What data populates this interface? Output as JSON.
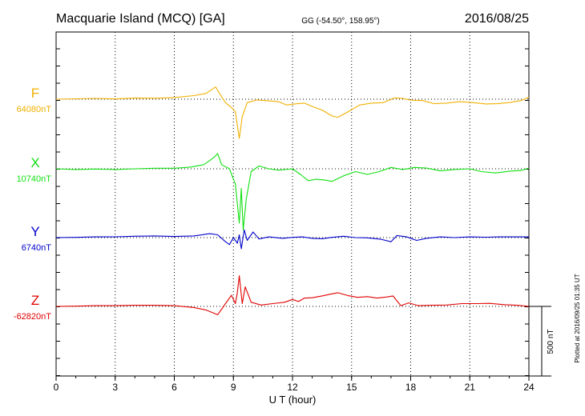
{
  "header": {
    "station": "Macquarie Island (MCQ)  [GA]",
    "coords": "GG (-54.50°, 158.95°)",
    "date": "2016/08/25"
  },
  "footer": {
    "plotted": "Plotted at 2016/09/25 01:35 UT",
    "scale_label": "500 nT"
  },
  "chart_data": {
    "type": "line",
    "xlabel": "U T (hour)",
    "xlim": [
      0,
      24
    ],
    "xticks": [
      "0",
      "3",
      "6",
      "9",
      "12",
      "15",
      "18",
      "21",
      "24"
    ],
    "grid": true,
    "scale_nT": 500,
    "colors": {
      "F": "#f0b000",
      "X": "#10e010",
      "Y": "#0000cc",
      "Z": "#e00000"
    },
    "series": [
      {
        "name": "F",
        "baseline_label": "64080nT",
        "baseline_nT": 64080,
        "points": [
          [
            0,
            64080
          ],
          [
            1,
            64083
          ],
          [
            2,
            64086
          ],
          [
            3,
            64082
          ],
          [
            4,
            64088
          ],
          [
            5,
            64087
          ],
          [
            6,
            64092
          ],
          [
            7,
            64106
          ],
          [
            7.6,
            64121
          ],
          [
            8.1,
            64168
          ],
          [
            8.3,
            64120
          ],
          [
            8.6,
            64055
          ],
          [
            8.9,
            64020
          ],
          [
            9.1,
            63990
          ],
          [
            9.3,
            63798
          ],
          [
            9.45,
            63955
          ],
          [
            9.7,
            64055
          ],
          [
            10.2,
            64075
          ],
          [
            10.8,
            64068
          ],
          [
            11.3,
            64062
          ],
          [
            11.7,
            64038
          ],
          [
            12.2,
            64047
          ],
          [
            12.6,
            64052
          ],
          [
            13.0,
            64028
          ],
          [
            13.5,
            64002
          ],
          [
            14.0,
            63960
          ],
          [
            14.3,
            63950
          ],
          [
            14.8,
            63988
          ],
          [
            15.4,
            64038
          ],
          [
            16.0,
            64052
          ],
          [
            16.6,
            64055
          ],
          [
            17.2,
            64090
          ],
          [
            17.6,
            64085
          ],
          [
            18.0,
            64073
          ],
          [
            18.6,
            64070
          ],
          [
            19.2,
            64048
          ],
          [
            19.8,
            64052
          ],
          [
            20.5,
            64062
          ],
          [
            21.2,
            64055
          ],
          [
            21.8,
            64046
          ],
          [
            22.4,
            64048
          ],
          [
            23.0,
            64056
          ],
          [
            23.6,
            64070
          ],
          [
            24,
            64095
          ]
        ]
      },
      {
        "name": "X",
        "baseline_label": "10740nT",
        "baseline_nT": 10740,
        "points": [
          [
            0,
            10740
          ],
          [
            1,
            10735
          ],
          [
            2,
            10738
          ],
          [
            3,
            10735
          ],
          [
            4,
            10740
          ],
          [
            5,
            10744
          ],
          [
            6,
            10744
          ],
          [
            6.8,
            10752
          ],
          [
            7.5,
            10770
          ],
          [
            8.0,
            10820
          ],
          [
            8.2,
            10850
          ],
          [
            8.4,
            10770
          ],
          [
            8.8,
            10740
          ],
          [
            9.1,
            10630
          ],
          [
            9.3,
            10350
          ],
          [
            9.4,
            10600
          ],
          [
            9.5,
            10300
          ],
          [
            9.65,
            10520
          ],
          [
            9.9,
            10720
          ],
          [
            10.3,
            10760
          ],
          [
            10.8,
            10740
          ],
          [
            11.3,
            10730
          ],
          [
            12.0,
            10740
          ],
          [
            12.4,
            10700
          ],
          [
            12.8,
            10655
          ],
          [
            13.2,
            10665
          ],
          [
            13.6,
            10660
          ],
          [
            14.0,
            10650
          ],
          [
            14.6,
            10690
          ],
          [
            15.2,
            10720
          ],
          [
            15.8,
            10700
          ],
          [
            16.4,
            10720
          ],
          [
            17.0,
            10750
          ],
          [
            17.6,
            10735
          ],
          [
            18.2,
            10750
          ],
          [
            18.8,
            10745
          ],
          [
            19.5,
            10725
          ],
          [
            20.2,
            10735
          ],
          [
            21.0,
            10740
          ],
          [
            21.6,
            10720
          ],
          [
            22.3,
            10710
          ],
          [
            23.0,
            10722
          ],
          [
            23.6,
            10728
          ],
          [
            24,
            10745
          ]
        ]
      },
      {
        "name": "Y",
        "baseline_label": "6740nT",
        "baseline_nT": 6740,
        "points": [
          [
            0,
            6740
          ],
          [
            1,
            6742
          ],
          [
            2,
            6745
          ],
          [
            3,
            6746
          ],
          [
            4,
            6750
          ],
          [
            5,
            6752
          ],
          [
            6,
            6748
          ],
          [
            7,
            6752
          ],
          [
            7.8,
            6768
          ],
          [
            8.2,
            6760
          ],
          [
            8.6,
            6710
          ],
          [
            8.8,
            6690
          ],
          [
            9.0,
            6740
          ],
          [
            9.2,
            6700
          ],
          [
            9.3,
            6760
          ],
          [
            9.4,
            6660
          ],
          [
            9.55,
            6795
          ],
          [
            9.7,
            6720
          ],
          [
            10.0,
            6780
          ],
          [
            10.3,
            6730
          ],
          [
            10.8,
            6745
          ],
          [
            11.5,
            6735
          ],
          [
            12.0,
            6742
          ],
          [
            12.5,
            6745
          ],
          [
            13.0,
            6735
          ],
          [
            13.5,
            6732
          ],
          [
            14.0,
            6742
          ],
          [
            14.6,
            6750
          ],
          [
            15.2,
            6740
          ],
          [
            15.8,
            6738
          ],
          [
            16.5,
            6728
          ],
          [
            17.0,
            6710
          ],
          [
            17.3,
            6755
          ],
          [
            17.8,
            6745
          ],
          [
            18.3,
            6720
          ],
          [
            18.8,
            6735
          ],
          [
            19.5,
            6745
          ],
          [
            20.2,
            6740
          ],
          [
            21.0,
            6745
          ],
          [
            21.8,
            6743
          ],
          [
            22.5,
            6745
          ],
          [
            23.2,
            6745
          ],
          [
            24,
            6745
          ]
        ]
      },
      {
        "name": "Z",
        "baseline_label": "-62820nT",
        "baseline_nT": -62820,
        "points": [
          [
            0,
            -62820
          ],
          [
            1,
            -62818
          ],
          [
            2,
            -62815
          ],
          [
            3,
            -62815
          ],
          [
            4,
            -62812
          ],
          [
            5,
            -62812
          ],
          [
            6,
            -62815
          ],
          [
            7,
            -62828
          ],
          [
            7.6,
            -62845
          ],
          [
            8.2,
            -62880
          ],
          [
            8.4,
            -62840
          ],
          [
            8.7,
            -62780
          ],
          [
            8.9,
            -62740
          ],
          [
            9.1,
            -62800
          ],
          [
            9.2,
            -62720
          ],
          [
            9.3,
            -62600
          ],
          [
            9.45,
            -62800
          ],
          [
            9.6,
            -62680
          ],
          [
            9.9,
            -62790
          ],
          [
            10.4,
            -62810
          ],
          [
            11.0,
            -62800
          ],
          [
            11.6,
            -62790
          ],
          [
            12.0,
            -62770
          ],
          [
            12.3,
            -62785
          ],
          [
            12.6,
            -62760
          ],
          [
            13.0,
            -62758
          ],
          [
            13.5,
            -62745
          ],
          [
            14.0,
            -62730
          ],
          [
            14.3,
            -62722
          ],
          [
            14.8,
            -62742
          ],
          [
            15.3,
            -62755
          ],
          [
            15.8,
            -62750
          ],
          [
            16.3,
            -62760
          ],
          [
            16.8,
            -62752
          ],
          [
            17.1,
            -62745
          ],
          [
            17.5,
            -62815
          ],
          [
            17.9,
            -62795
          ],
          [
            18.4,
            -62815
          ],
          [
            19.0,
            -62812
          ],
          [
            19.8,
            -62810
          ],
          [
            20.6,
            -62800
          ],
          [
            21.4,
            -62800
          ],
          [
            22.0,
            -62798
          ],
          [
            22.8,
            -62808
          ],
          [
            23.4,
            -62812
          ],
          [
            24,
            -62820
          ]
        ]
      }
    ]
  }
}
